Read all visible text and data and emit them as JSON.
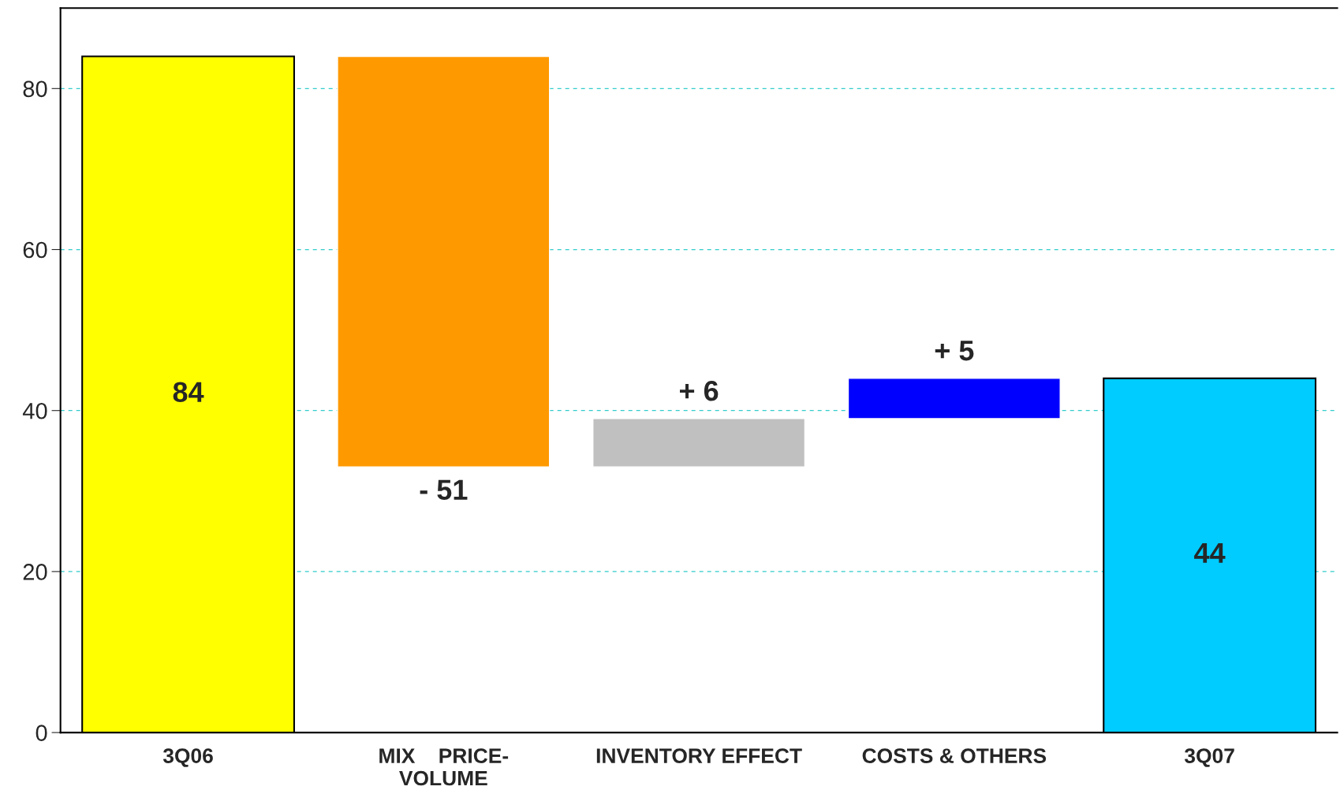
{
  "chart_data": {
    "type": "bar",
    "categories": [
      "3Q06",
      "MIX    PRICE-\nVOLUME",
      "INVENTORY EFFECT",
      "COSTS & OTHERS",
      "3Q07"
    ],
    "values": [
      84,
      -51,
      6,
      5,
      44
    ],
    "base": [
      0,
      84,
      33,
      39,
      0
    ],
    "colors": [
      "#ffff00",
      "#ff9900",
      "#c0c0c0",
      "#0000ff",
      "#00ccff"
    ],
    "value_labels": [
      "84",
      "- 51",
      "+ 6",
      "+ 5",
      "44"
    ],
    "ylim": [
      0,
      90
    ],
    "yticks": [
      0,
      20,
      40,
      60,
      80
    ],
    "grid": "y",
    "legend": false
  }
}
